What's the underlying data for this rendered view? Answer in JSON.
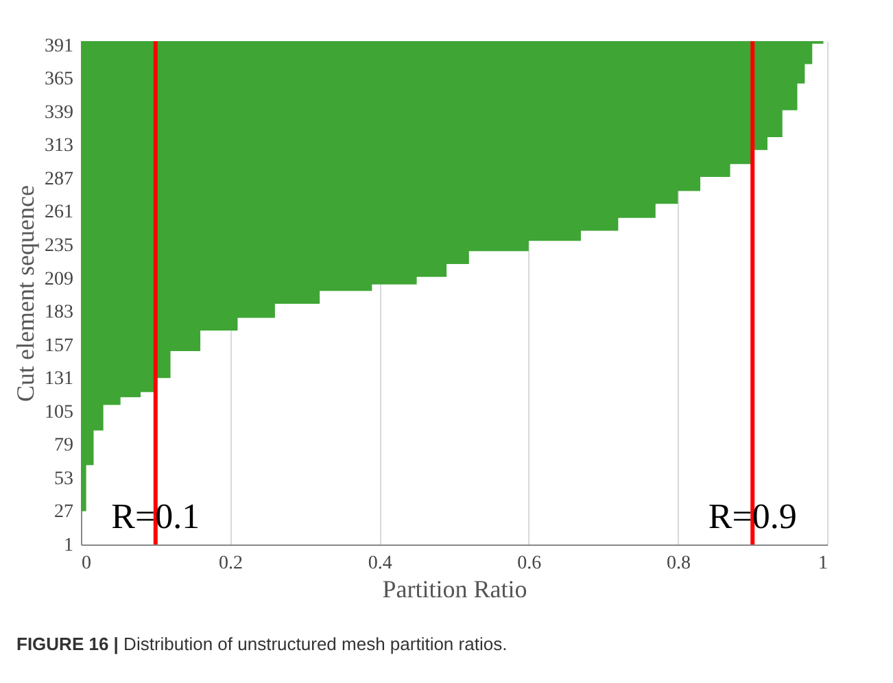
{
  "chart_data": {
    "type": "area",
    "orientation": "horizontal",
    "xlabel": "Partition Ratio",
    "ylabel": "Cut element sequence",
    "x": [
      1,
      27,
      63,
      90,
      110,
      116,
      120,
      131,
      152,
      168,
      178,
      189,
      199,
      204,
      210,
      220,
      230,
      238,
      246,
      256,
      267,
      277,
      288,
      298,
      309,
      319,
      340,
      361,
      376,
      392,
      394
    ],
    "series": [
      {
        "color": "#3fa535",
        "values": [
          0.0,
          0.007,
          0.017,
          0.03,
          0.053,
          0.08,
          0.1,
          0.12,
          0.16,
          0.21,
          0.26,
          0.32,
          0.39,
          0.45,
          0.49,
          0.52,
          0.6,
          0.67,
          0.72,
          0.77,
          0.8,
          0.83,
          0.87,
          0.9,
          0.92,
          0.94,
          0.96,
          0.97,
          0.98,
          0.995,
          1.0
        ]
      }
    ],
    "xlim": [
      0,
      1
    ],
    "xticks": [
      0,
      0.2,
      0.4,
      0.6,
      0.8,
      1
    ],
    "ylim": [
      1,
      394
    ],
    "yticks": [
      1,
      27,
      53,
      79,
      105,
      131,
      157,
      183,
      209,
      235,
      261,
      287,
      313,
      339,
      365,
      391
    ],
    "grid": "x",
    "legend": false,
    "ref_lines": [
      {
        "axis": "x",
        "value": 0.1,
        "label": "R=0.1",
        "color": "#ff0000"
      },
      {
        "axis": "x",
        "value": 0.9,
        "label": "R=0.9",
        "color": "#ff0000"
      }
    ],
    "annotations": [
      "FIGURE 16 | Distribution of unstructured mesh partition ratios."
    ]
  }
}
